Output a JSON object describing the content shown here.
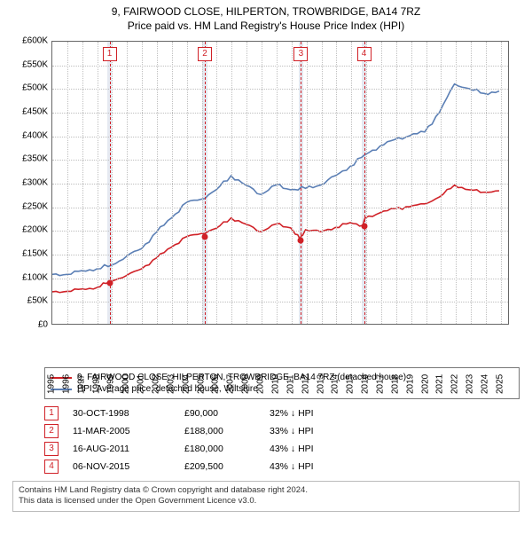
{
  "title_main": "9, FAIRWOOD CLOSE, HILPERTON, TROWBRIDGE, BA14 7RZ",
  "title_sub": "Price paid vs. HM Land Registry's House Price Index (HPI)",
  "chart": {
    "type": "line",
    "x_start": 1995,
    "x_end": 2025.6,
    "y_start": 0,
    "y_end": 600000,
    "y_tick_step": 50000,
    "y_prefix": "£",
    "y_suffix": "K",
    "x_ticks": [
      1995,
      1996,
      1997,
      1998,
      1999,
      2000,
      2001,
      2002,
      2003,
      2004,
      2005,
      2006,
      2007,
      2008,
      2009,
      2010,
      2011,
      2012,
      2013,
      2014,
      2015,
      2016,
      2017,
      2018,
      2019,
      2020,
      2021,
      2022,
      2023,
      2024,
      2025
    ],
    "background": "#ffffff",
    "grid_color": "#bfbfbf",
    "line_width": 1.6,
    "series_hpi": {
      "color": "#5b7fb5",
      "points": [
        [
          1995,
          105000
        ],
        [
          1996,
          105000
        ],
        [
          1997,
          113000
        ],
        [
          1998,
          117000
        ],
        [
          1999,
          125000
        ],
        [
          2000,
          144000
        ],
        [
          2001,
          160000
        ],
        [
          2002,
          195000
        ],
        [
          2003,
          225000
        ],
        [
          2004,
          258000
        ],
        [
          2005,
          265000
        ],
        [
          2006,
          285000
        ],
        [
          2007,
          315000
        ],
        [
          2008,
          295000
        ],
        [
          2009,
          275000
        ],
        [
          2010,
          295000
        ],
        [
          2011,
          285000
        ],
        [
          2012,
          288000
        ],
        [
          2013,
          295000
        ],
        [
          2014,
          315000
        ],
        [
          2015,
          335000
        ],
        [
          2016,
          360000
        ],
        [
          2017,
          378000
        ],
        [
          2018,
          392000
        ],
        [
          2019,
          400000
        ],
        [
          2020,
          408000
        ],
        [
          2021,
          450000
        ],
        [
          2022,
          510000
        ],
        [
          2023,
          500000
        ],
        [
          2024,
          490000
        ],
        [
          2025,
          495000
        ]
      ]
    },
    "series_property": {
      "color": "#d02127",
      "points": [
        [
          1995,
          68000
        ],
        [
          1996,
          69000
        ],
        [
          1997,
          74000
        ],
        [
          1998,
          77000
        ],
        [
          1998.83,
          90000
        ],
        [
          2000,
          103000
        ],
        [
          2001,
          117000
        ],
        [
          2002,
          140000
        ],
        [
          2003,
          163000
        ],
        [
          2004,
          185000
        ],
        [
          2005,
          192000
        ],
        [
          2006,
          203000
        ],
        [
          2007,
          225000
        ],
        [
          2008,
          212000
        ],
        [
          2009,
          196000
        ],
        [
          2010,
          212000
        ],
        [
          2011,
          204000
        ],
        [
          2011.63,
          180000
        ],
        [
          2012,
          200000
        ],
        [
          2013,
          196000
        ],
        [
          2014,
          205000
        ],
        [
          2015,
          215000
        ],
        [
          2015.85,
          209500
        ],
        [
          2016,
          225000
        ],
        [
          2017,
          236000
        ],
        [
          2018,
          245000
        ],
        [
          2019,
          249000
        ],
        [
          2020,
          255000
        ],
        [
          2021,
          270000
        ],
        [
          2022,
          295000
        ],
        [
          2023,
          285000
        ],
        [
          2024,
          280000
        ],
        [
          2025,
          283000
        ]
      ]
    },
    "event_bands": [
      {
        "x": 1998.83,
        "w": 0.3
      },
      {
        "x": 2005.2,
        "w": 0.3
      },
      {
        "x": 2011.63,
        "w": 0.3
      },
      {
        "x": 2015.85,
        "w": 0.3
      }
    ],
    "event_markers": [
      {
        "n": "1",
        "x": 1998.83,
        "y": 90000
      },
      {
        "n": "2",
        "x": 2005.2,
        "y": 188000
      },
      {
        "n": "3",
        "x": 2011.63,
        "y": 180000
      },
      {
        "n": "4",
        "x": 2015.85,
        "y": 209500
      }
    ]
  },
  "legend": {
    "items": [
      {
        "color": "#d02127",
        "label": "9, FAIRWOOD CLOSE, HILPERTON, TROWBRIDGE, BA14 7RZ (detached house)"
      },
      {
        "color": "#5b7fb5",
        "label": "HPI: Average price, detached house, Wiltshire"
      }
    ]
  },
  "events": [
    {
      "n": "1",
      "date": "30-OCT-1998",
      "price": "£90,000",
      "diff": "32% ↓ HPI"
    },
    {
      "n": "2",
      "date": "11-MAR-2005",
      "price": "£188,000",
      "diff": "33% ↓ HPI"
    },
    {
      "n": "3",
      "date": "16-AUG-2011",
      "price": "£180,000",
      "diff": "43% ↓ HPI"
    },
    {
      "n": "4",
      "date": "06-NOV-2015",
      "price": "£209,500",
      "diff": "43% ↓ HPI"
    }
  ],
  "footer_line1": "Contains HM Land Registry data © Crown copyright and database right 2024.",
  "footer_line2": "This data is licensed under the Open Government Licence v3.0."
}
